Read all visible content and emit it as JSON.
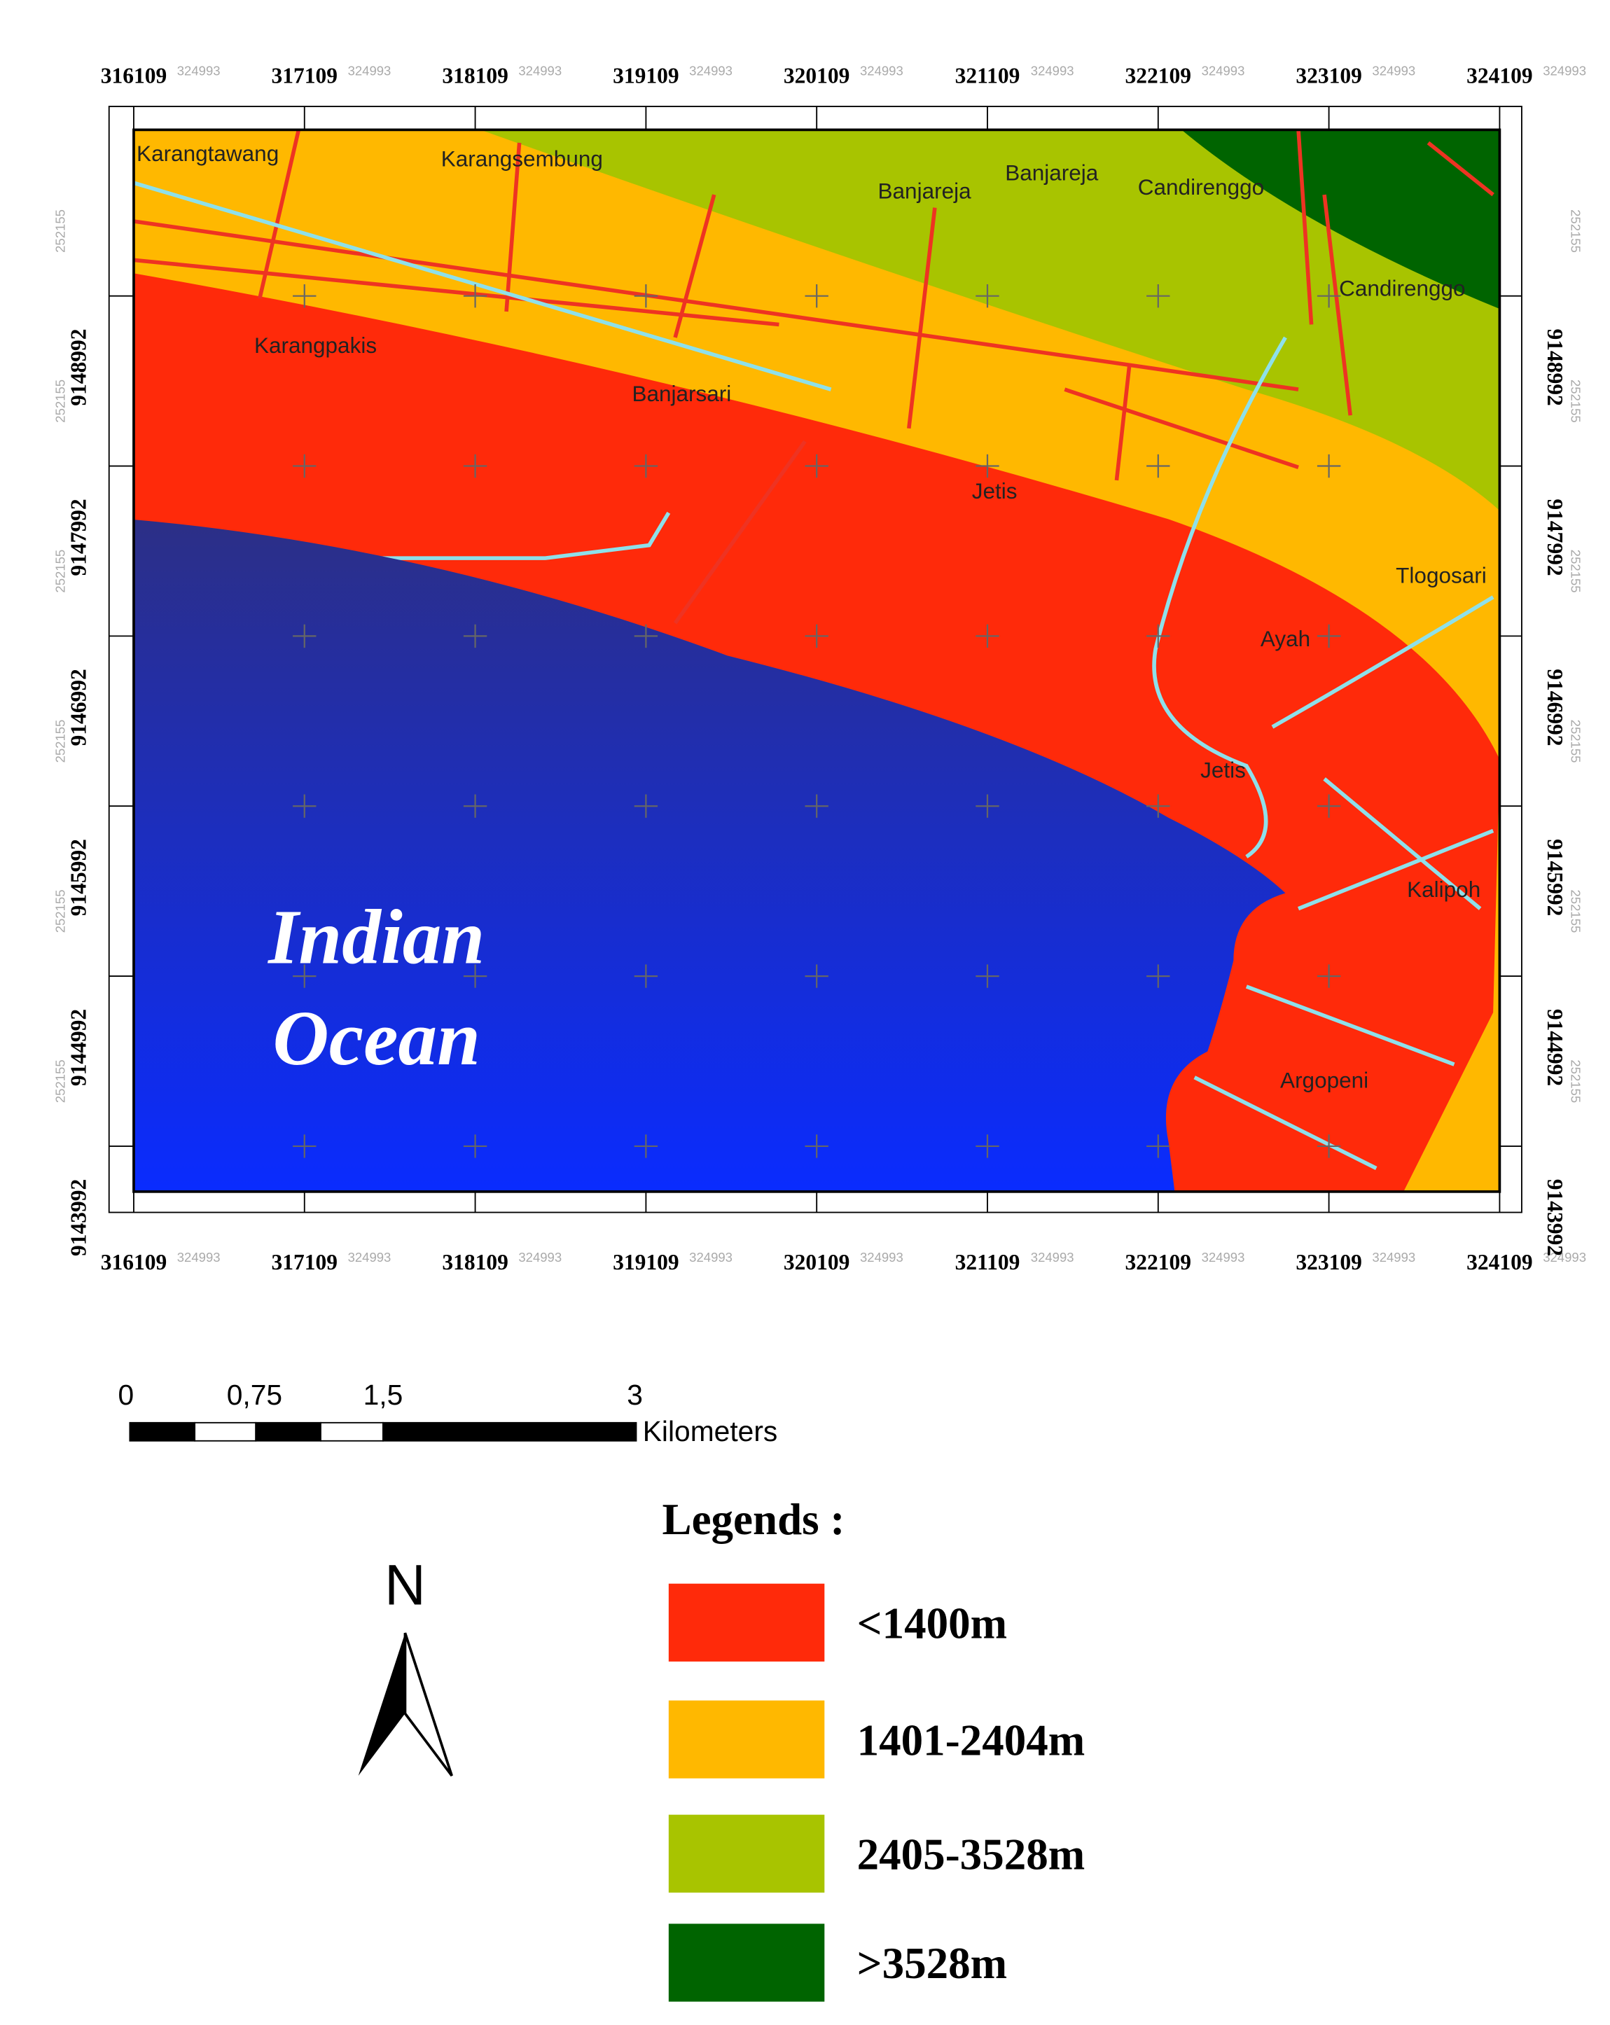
{
  "map": {
    "x_ticks": [
      316109,
      317109,
      318109,
      319109,
      320109,
      321109,
      322109,
      323109,
      324109
    ],
    "x_faint_label": "324993",
    "y_ticks": [
      9148992,
      9147992,
      9146992,
      9145992,
      9144992,
      9143992
    ],
    "y_faint_label": "252155",
    "places": [
      "Karangtawang",
      "Karangsembung",
      "Banjareja",
      "Banjareja",
      "Candirenggo",
      "Candirenggo",
      "Karangpakis",
      "Banjarsari",
      "Jetis",
      "Tlogosari",
      "Ayah",
      "Jetis",
      "Kalipoh",
      "Argopeni"
    ],
    "ocean_label": [
      "Indian",
      "Ocean"
    ]
  },
  "scale_bar": {
    "ticks": [
      "0",
      "0,75",
      "1,5",
      "3"
    ],
    "unit": "Kilometers"
  },
  "north": "N",
  "legend": {
    "title": "Legends :",
    "items": [
      {
        "label": "<1400m",
        "color": "#ff2a0a"
      },
      {
        "label": "1401-2404m",
        "color": "#ffb800"
      },
      {
        "label": "2405-3528m",
        "color": "#a8c400"
      },
      {
        "label": ">3528m",
        "color": "#006400"
      }
    ]
  }
}
